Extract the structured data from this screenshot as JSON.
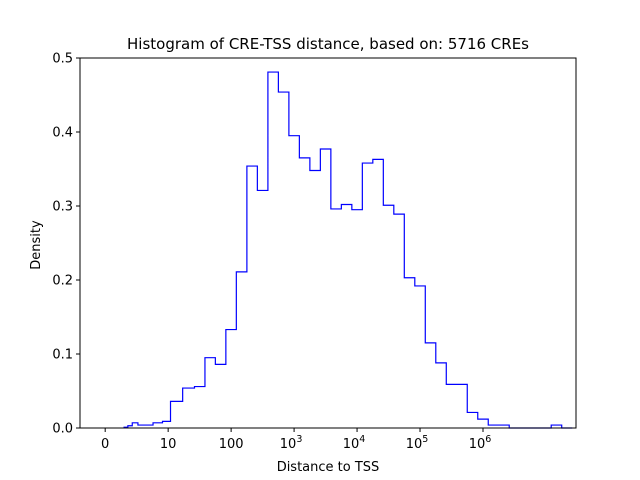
{
  "chart_data": {
    "type": "histogram-step",
    "title": "Histogram of CRE-TSS distance, based on: 5716 CREs",
    "xlabel": "Distance to TSS",
    "ylabel": "Density",
    "x_scale": "symlog-base10",
    "linthresh": 10,
    "xlim": [
      -4,
      30000000
    ],
    "ylim": [
      0,
      0.5
    ],
    "y_ticks": [
      0.0,
      0.1,
      0.2,
      0.3,
      0.4,
      0.5
    ],
    "y_tick_labels": [
      "0.0",
      "0.1",
      "0.2",
      "0.3",
      "0.4",
      "0.5"
    ],
    "x_ticks": [
      {
        "value": 0,
        "base": "0",
        "exp": ""
      },
      {
        "value": 10,
        "base": "10",
        "exp": ""
      },
      {
        "value": 100,
        "base": "100",
        "exp": ""
      },
      {
        "value": 1000,
        "base": "10",
        "exp": "3"
      },
      {
        "value": 10000,
        "base": "10",
        "exp": "4"
      },
      {
        "value": 100000,
        "base": "10",
        "exp": "5"
      },
      {
        "value": 1000000,
        "base": "10",
        "exp": "6"
      }
    ],
    "grid": false,
    "legend": "none",
    "line_color": "#0000ff",
    "bins": {
      "edges": [
        3,
        3.6,
        4.3,
        5.2,
        6.3,
        7.6,
        9.1,
        10.9,
        13.2,
        17,
        26.2,
        38.4,
        56.2,
        82.5,
        121,
        178,
        261,
        384,
        563,
        827,
        1213,
        1781,
        2614,
        3837,
        5631,
        8265,
        12130,
        17800,
        26130,
        38350,
        56280,
        82600,
        121200,
        178000,
        261200,
        383300,
        562600,
        825700,
        1212000,
        1778000,
        2610000,
        3830000,
        5620000,
        8260000,
        12120000,
        17790000,
        26100000
      ],
      "densities": [
        0.001,
        0.003,
        0.007,
        0.004,
        0.004,
        0.007,
        0.009,
        0.036,
        0.036,
        0.054,
        0.056,
        0.095,
        0.086,
        0.133,
        0.211,
        0.354,
        0.321,
        0.481,
        0.454,
        0.395,
        0.365,
        0.348,
        0.377,
        0.296,
        0.302,
        0.295,
        0.358,
        0.363,
        0.301,
        0.289,
        0.203,
        0.192,
        0.115,
        0.088,
        0.059,
        0.059,
        0.021,
        0.012,
        0.004,
        0.004,
        0.0,
        0.0,
        0.0,
        0.0,
        0.004,
        0.0
      ]
    }
  }
}
